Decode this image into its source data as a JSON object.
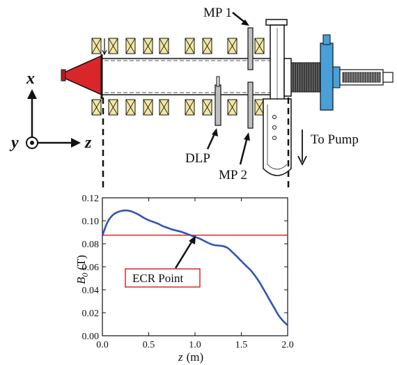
{
  "labels": {
    "mp1": "MP 1",
    "mp2": "MP 2",
    "dlp": "DLP",
    "to_pump": "To Pump",
    "ecr_point": "ECR Point"
  },
  "axes_indicator": {
    "x": "x",
    "y": "y",
    "z": "z"
  },
  "colors": {
    "source_cone": "#d9262a",
    "coil": "#f2e7a3",
    "pump_flange": "#4a9fd6",
    "curve": "#2f55b3",
    "ecr_line": "#d42a2a"
  },
  "chart_data": {
    "type": "line",
    "xlabel_sym": "z",
    "xlabel_unit": "(m)",
    "ylabel_sym": "B",
    "ylabel_sub": "0",
    "ylabel_unit": "(T)",
    "xlim": [
      0.0,
      2.0
    ],
    "ylim": [
      0.0,
      0.12
    ],
    "xticks": [
      "0.0",
      "0.5",
      "1.0",
      "1.5",
      "2.0"
    ],
    "yticks": [
      "0.00",
      "0.02",
      "0.04",
      "0.06",
      "0.08",
      "0.10",
      "0.12"
    ],
    "x": [
      0.0,
      0.05,
      0.1,
      0.15,
      0.2,
      0.25,
      0.3,
      0.35,
      0.4,
      0.45,
      0.5,
      0.55,
      0.6,
      0.65,
      0.7,
      0.75,
      0.8,
      0.85,
      0.9,
      0.95,
      1.0,
      1.05,
      1.1,
      1.15,
      1.2,
      1.25,
      1.3,
      1.35,
      1.4,
      1.45,
      1.5,
      1.55,
      1.6,
      1.65,
      1.7,
      1.75,
      1.8,
      1.85,
      1.9,
      1.95,
      2.0
    ],
    "y": [
      0.087,
      0.098,
      0.104,
      0.107,
      0.1085,
      0.109,
      0.1085,
      0.107,
      0.105,
      0.1025,
      0.1005,
      0.099,
      0.0975,
      0.0955,
      0.094,
      0.0925,
      0.0915,
      0.0905,
      0.089,
      0.0875,
      0.086,
      0.0845,
      0.0825,
      0.0805,
      0.079,
      0.0785,
      0.078,
      0.0765,
      0.073,
      0.069,
      0.065,
      0.061,
      0.057,
      0.052,
      0.046,
      0.039,
      0.032,
      0.025,
      0.018,
      0.013,
      0.009
    ],
    "ecr_value": 0.0875
  }
}
